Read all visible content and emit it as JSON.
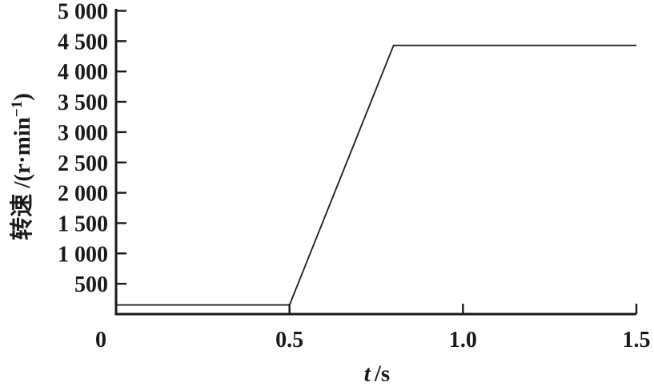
{
  "chart_data": {
    "type": "line",
    "title": "",
    "xlabel": {
      "symbol": "t",
      "unit": "/s"
    },
    "ylabel": {
      "prefix": "转速 /(r·min",
      "sup": "−1",
      "suffix": ")"
    },
    "xlim": [
      0,
      1.5
    ],
    "ylim": [
      0,
      5000
    ],
    "grid": false,
    "legend": "none",
    "background": "#ffffff",
    "axis_color": "#1a1a1a",
    "line_color": "#1a1a1a",
    "x_ticks": [
      {
        "value": 0,
        "label": "0"
      },
      {
        "value": 0.5,
        "label": "0.5"
      },
      {
        "value": 1.0,
        "label": "1.0"
      },
      {
        "value": 1.5,
        "label": "1.5"
      }
    ],
    "y_ticks": [
      {
        "value": 500,
        "label": "500"
      },
      {
        "value": 1000,
        "label": "1 000"
      },
      {
        "value": 1500,
        "label": "1 500"
      },
      {
        "value": 2000,
        "label": "2 000"
      },
      {
        "value": 2500,
        "label": "2 500"
      },
      {
        "value": 3000,
        "label": "3 000"
      },
      {
        "value": 3500,
        "label": "3 500"
      },
      {
        "value": 4000,
        "label": "4 000"
      },
      {
        "value": 4500,
        "label": "4 500"
      },
      {
        "value": 5000,
        "label": "5 000"
      }
    ],
    "series": [
      {
        "name": "rotational-speed",
        "x": [
          0,
          0.5,
          0.8,
          1.5
        ],
        "y": [
          150,
          150,
          4430,
          4430
        ]
      }
    ]
  }
}
